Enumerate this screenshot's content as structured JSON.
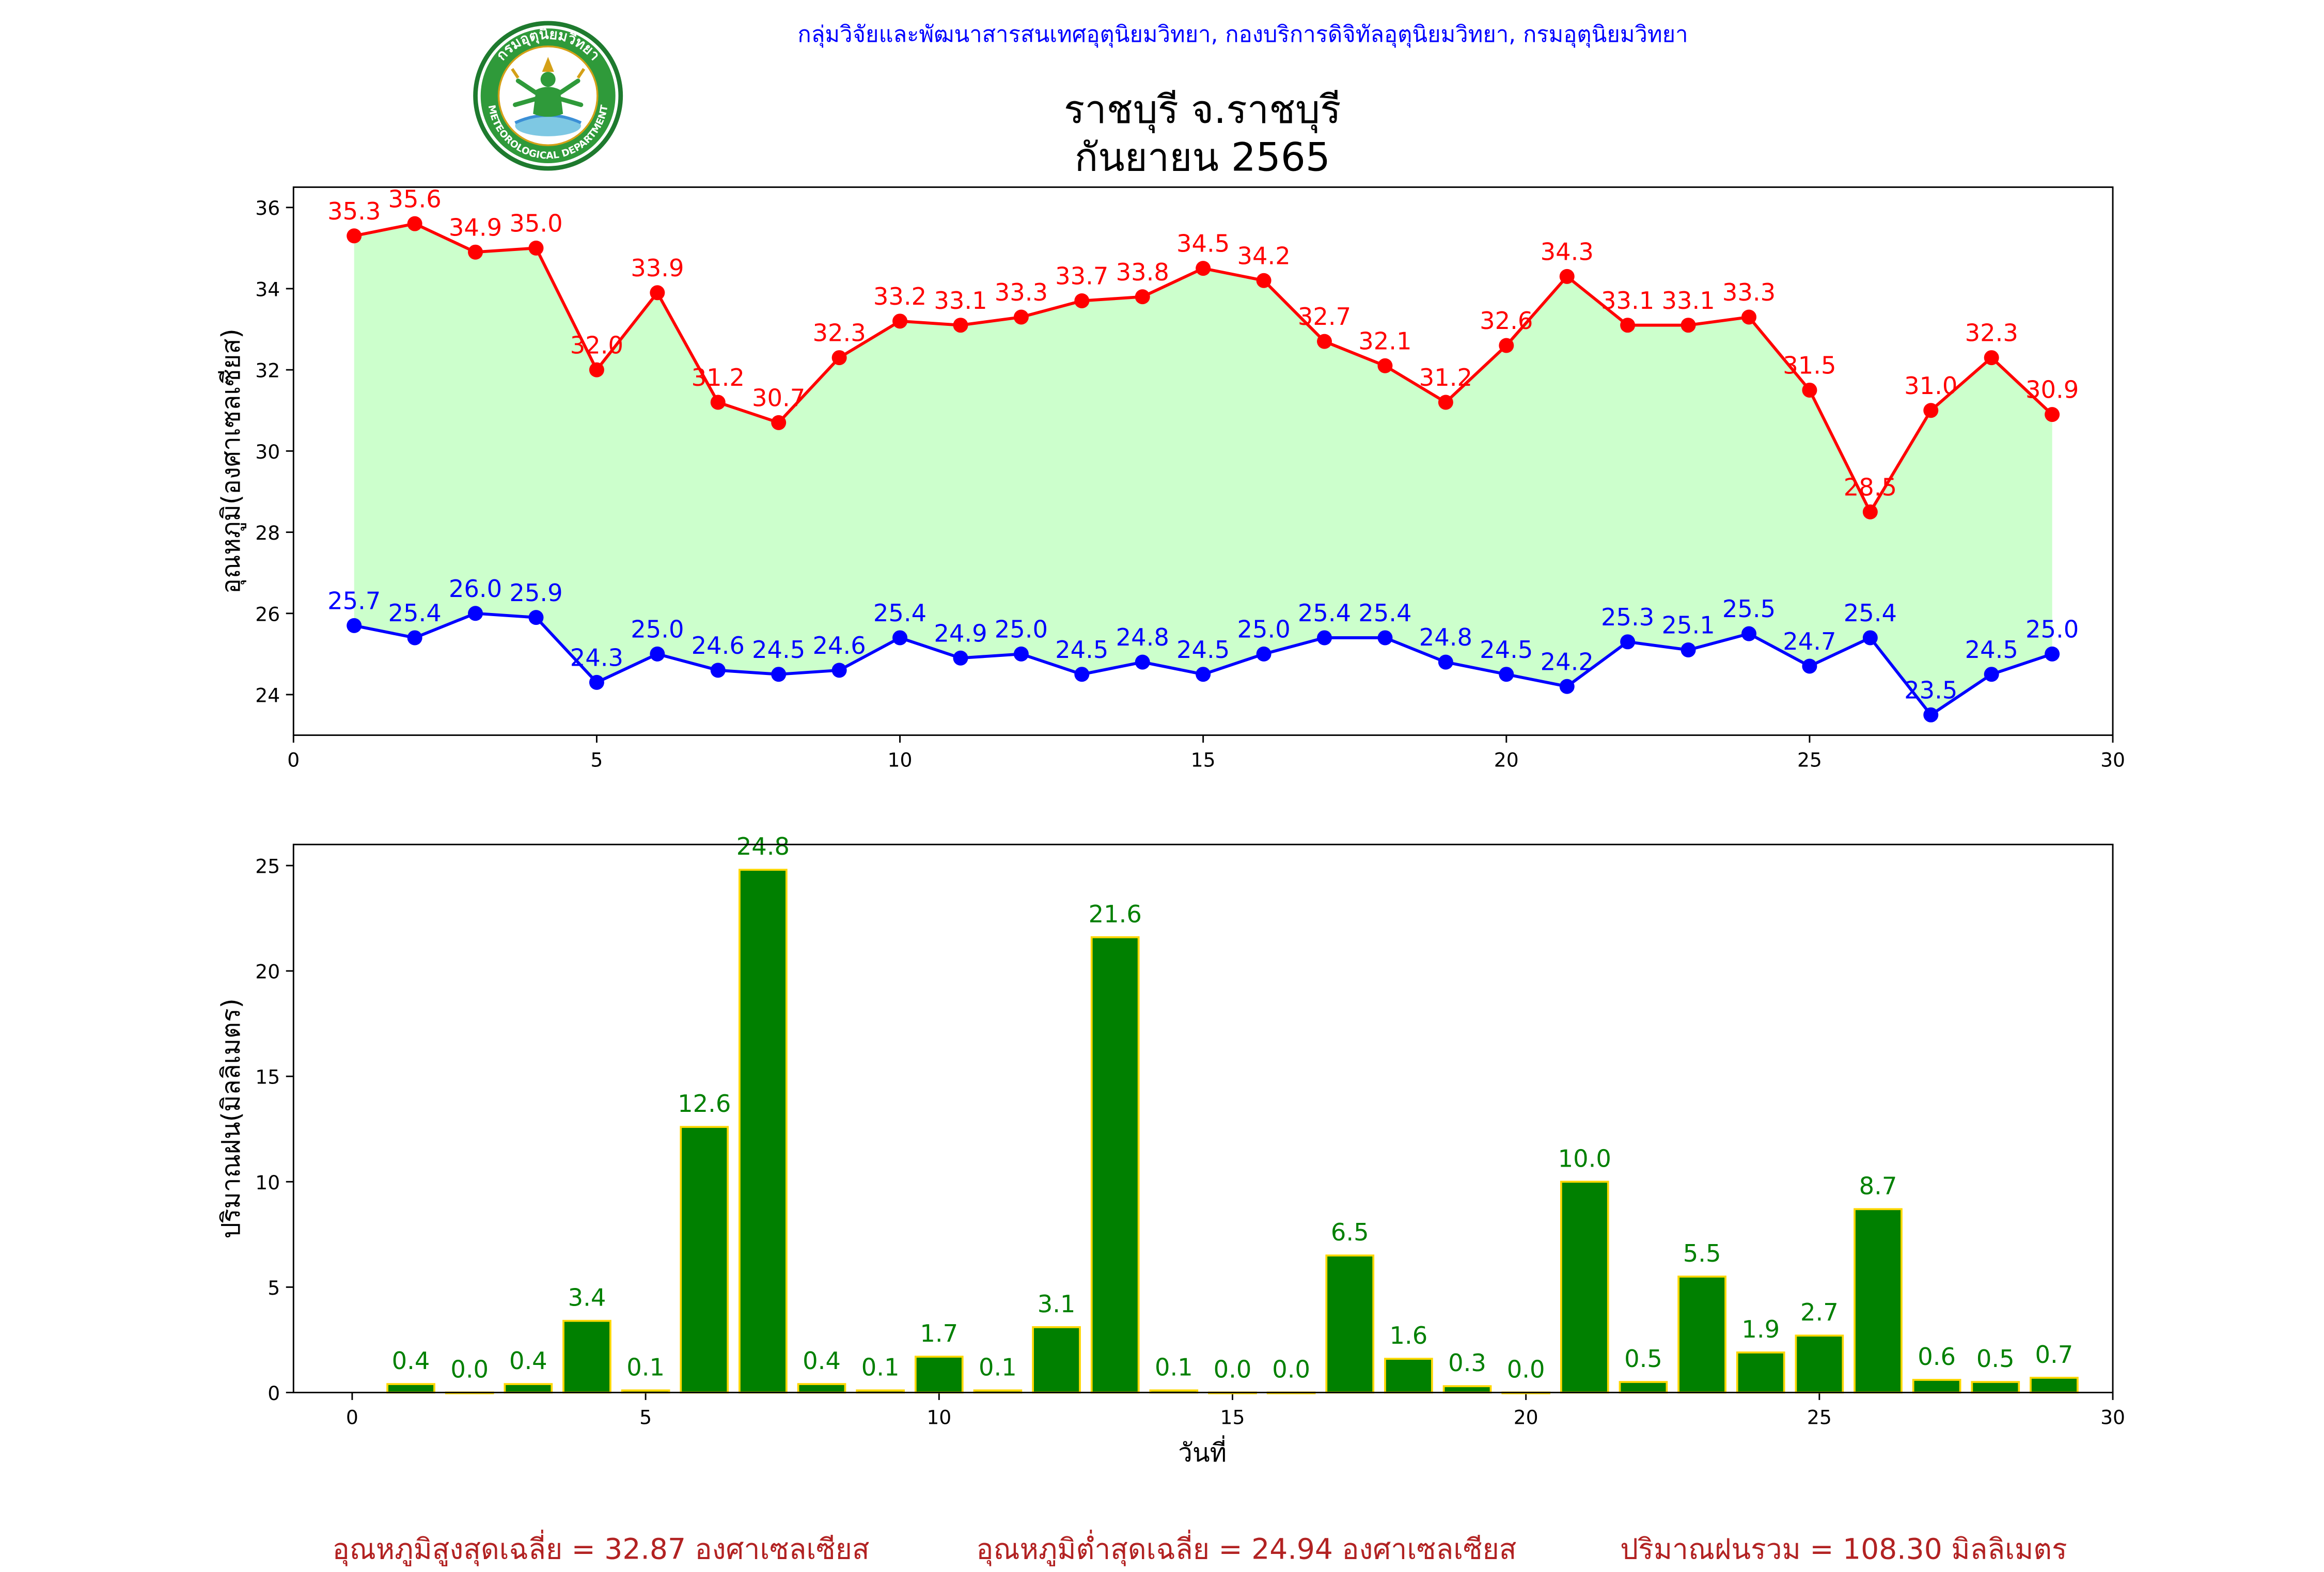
{
  "header": {
    "agency_line": "กลุ่มวิจัยและพัฒนาสารสนเทศอุตุนิยมวิทยา, กองบริการดิจิทัลอุตุนิยมวิทยา, กรมอุตุนิยมวิทยา",
    "title_line1": "ราชบุรี จ.ราชบุรี",
    "title_line2": "กันยายน 2565"
  },
  "logo": {
    "ring_text_top": "กรมอุตุนิยมวิทยา",
    "ring_text_bottom": "METEOROLOGICAL DEPARTMENT"
  },
  "summary": {
    "avg_max": "อุณหภูมิสูงสุดเฉลี่ย = 32.87 องศาเซลเซียส",
    "avg_min": "อุณหภูมิต่ำสุดเฉลี่ย = 24.94 องศาเซลเซียส",
    "total_rain": "ปริมาณฝนรวม = 108.30 มิลลิเมตร"
  },
  "colors": {
    "max_line": "#ff0000",
    "min_line": "#0000ff",
    "fill": "#ccffcc",
    "rain_bar": "#008000",
    "rain_edge": "#ffd700",
    "rain_label": "#008000",
    "summary_text": "#b22222",
    "agency_text": "#0000ff"
  },
  "chart_data": [
    {
      "type": "line",
      "ylabel": "อุณหภูมิ(องศาเซลเซียส)",
      "xlim": [
        0,
        30
      ],
      "ylim": [
        23,
        36
      ],
      "xticks": [
        0,
        5,
        10,
        15,
        20,
        25,
        30
      ],
      "yticks": [
        24,
        26,
        28,
        30,
        32,
        34,
        36
      ],
      "x": [
        1,
        2,
        3,
        4,
        5,
        6,
        7,
        8,
        9,
        10,
        11,
        12,
        13,
        14,
        15,
        16,
        17,
        18,
        19,
        20,
        21,
        22,
        23,
        24,
        25,
        26,
        27,
        28,
        29
      ],
      "series": [
        {
          "key": "max",
          "values": [
            35.3,
            35.6,
            34.9,
            35.0,
            32.0,
            33.9,
            31.2,
            30.7,
            32.3,
            33.2,
            33.1,
            33.3,
            33.7,
            33.8,
            34.5,
            34.2,
            32.7,
            32.1,
            31.2,
            32.6,
            34.3,
            33.1,
            33.1,
            33.3,
            31.5,
            28.5,
            31.0,
            32.3,
            30.9
          ]
        },
        {
          "key": "min",
          "values": [
            25.7,
            25.4,
            26.0,
            25.9,
            24.3,
            25.0,
            24.6,
            24.5,
            24.6,
            25.4,
            24.9,
            25.0,
            24.5,
            24.8,
            24.5,
            25.0,
            25.4,
            25.4,
            24.8,
            24.5,
            24.2,
            25.3,
            25.1,
            25.5,
            24.7,
            25.4,
            23.5,
            24.5,
            25.0
          ]
        }
      ]
    },
    {
      "type": "bar",
      "xlabel": "วันที่",
      "ylabel": "ปริมาณฝน(มิลลิเมตร)",
      "xlim": [
        -1,
        30
      ],
      "ylim": [
        0,
        26
      ],
      "xticks": [
        0,
        5,
        10,
        15,
        20,
        25,
        30
      ],
      "yticks": [
        0,
        5,
        10,
        15,
        20,
        25
      ],
      "x": [
        1,
        2,
        3,
        4,
        5,
        6,
        7,
        8,
        9,
        10,
        11,
        12,
        13,
        14,
        15,
        16,
        17,
        18,
        19,
        20,
        21,
        22,
        23,
        24,
        25,
        26,
        27,
        28,
        29
      ],
      "values": [
        0.4,
        0.0,
        0.4,
        3.4,
        0.1,
        12.6,
        24.8,
        0.4,
        0.1,
        1.7,
        0.1,
        3.1,
        21.6,
        0.1,
        0.0,
        0.0,
        6.5,
        1.6,
        0.3,
        0.0,
        10.0,
        0.5,
        5.5,
        1.9,
        2.7,
        8.7,
        0.6,
        0.5,
        0.7
      ]
    }
  ]
}
